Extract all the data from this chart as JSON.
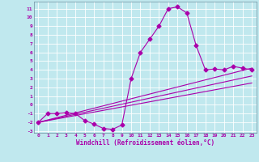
{
  "xlabel": "Windchill (Refroidissement éolien,°C)",
  "xlim": [
    -0.5,
    23.5
  ],
  "ylim": [
    -3.2,
    11.8
  ],
  "xticks": [
    0,
    1,
    2,
    3,
    4,
    5,
    6,
    7,
    8,
    9,
    10,
    11,
    12,
    13,
    14,
    15,
    16,
    17,
    18,
    19,
    20,
    21,
    22,
    23
  ],
  "yticks": [
    -3,
    -2,
    -1,
    0,
    1,
    2,
    3,
    4,
    5,
    6,
    7,
    8,
    9,
    10,
    11
  ],
  "bg_color": "#c0e8ee",
  "line_color": "#aa00aa",
  "grid_color": "#ffffff",
  "line1_x": [
    0,
    1,
    2,
    3,
    4,
    5,
    6,
    7,
    8,
    9,
    10,
    11,
    12,
    13,
    14,
    15,
    16,
    17,
    18,
    19,
    20,
    21,
    22,
    23
  ],
  "line1_y": [
    -2,
    -1.0,
    -1.0,
    -0.9,
    -1.0,
    -1.8,
    -2.2,
    -2.7,
    -2.8,
    -2.3,
    3.0,
    6.0,
    7.5,
    9.0,
    11.0,
    11.2,
    10.5,
    6.8,
    4.0,
    4.1,
    4.0,
    4.4,
    4.2,
    4.0
  ],
  "line2_x": [
    0,
    23
  ],
  "line2_y": [
    -2.0,
    4.2
  ],
  "line3_x": [
    0,
    23
  ],
  "line3_y": [
    -2.0,
    3.3
  ],
  "line4_x": [
    0,
    23
  ],
  "line4_y": [
    -2.0,
    2.5
  ],
  "markersize": 2.5,
  "linewidth": 0.8
}
